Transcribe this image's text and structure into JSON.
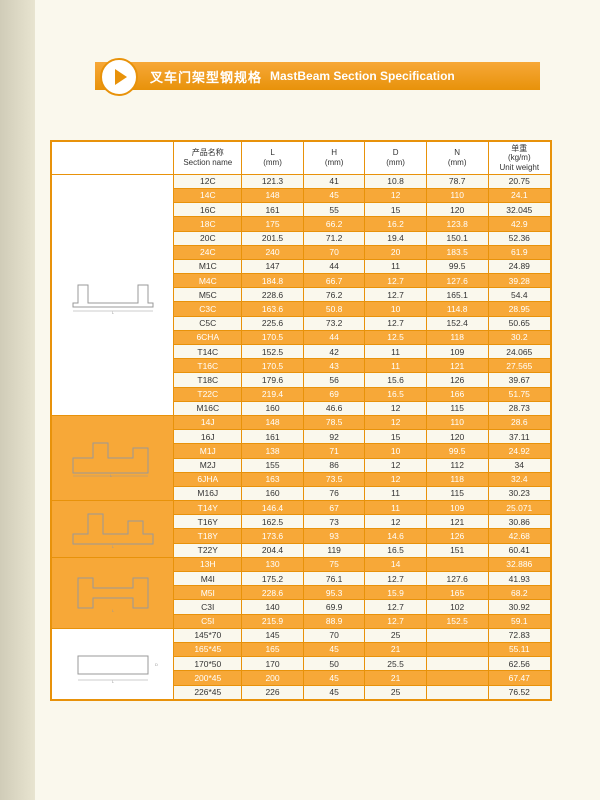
{
  "header": {
    "title_cn": "叉车门架型钢规格",
    "title_en": "MastBeam Section Specification"
  },
  "columns": [
    {
      "cn": "产品名称",
      "en": "Section name"
    },
    {
      "cn": "L",
      "en": "(mm)"
    },
    {
      "cn": "H",
      "en": "(mm)"
    },
    {
      "cn": "D",
      "en": "(mm)"
    },
    {
      "cn": "N",
      "en": "(mm)"
    },
    {
      "cn": "单重",
      "en": "(kg/m)\nUnit weight"
    }
  ],
  "groups": [
    {
      "diagram": "c",
      "rows": [
        {
          "hl": false,
          "cells": [
            "12C",
            "121.3",
            "41",
            "10.8",
            "78.7",
            "20.75"
          ]
        },
        {
          "hl": true,
          "cells": [
            "14C",
            "148",
            "45",
            "12",
            "110",
            "24.1"
          ]
        },
        {
          "hl": false,
          "cells": [
            "16C",
            "161",
            "55",
            "15",
            "120",
            "32.045"
          ]
        },
        {
          "hl": true,
          "cells": [
            "18C",
            "175",
            "66.2",
            "16.2",
            "123.8",
            "42.9"
          ]
        },
        {
          "hl": false,
          "cells": [
            "20C",
            "201.5",
            "71.2",
            "19.4",
            "150.1",
            "52.36"
          ]
        },
        {
          "hl": true,
          "cells": [
            "24C",
            "240",
            "70",
            "20",
            "183.5",
            "61.9"
          ]
        },
        {
          "hl": false,
          "cells": [
            "M1C",
            "147",
            "44",
            "11",
            "99.5",
            "24.89"
          ]
        },
        {
          "hl": true,
          "cells": [
            "M4C",
            "184.8",
            "66.7",
            "12.7",
            "127.6",
            "39.28"
          ]
        },
        {
          "hl": false,
          "cells": [
            "M5C",
            "228.6",
            "76.2",
            "12.7",
            "165.1",
            "54.4"
          ]
        },
        {
          "hl": true,
          "cells": [
            "C3C",
            "163.6",
            "50.8",
            "10",
            "114.8",
            "28.95"
          ]
        },
        {
          "hl": false,
          "cells": [
            "C5C",
            "225.6",
            "73.2",
            "12.7",
            "152.4",
            "50.65"
          ]
        },
        {
          "hl": true,
          "cells": [
            "6CHA",
            "170.5",
            "44",
            "12.5",
            "118",
            "30.2"
          ]
        },
        {
          "hl": false,
          "cells": [
            "T14C",
            "152.5",
            "42",
            "11",
            "109",
            "24.065"
          ]
        },
        {
          "hl": true,
          "cells": [
            "T16C",
            "170.5",
            "43",
            "11",
            "121",
            "27.565"
          ]
        },
        {
          "hl": false,
          "cells": [
            "T18C",
            "179.6",
            "56",
            "15.6",
            "126",
            "39.67"
          ]
        },
        {
          "hl": true,
          "cells": [
            "T22C",
            "219.4",
            "69",
            "16.5",
            "166",
            "51.75"
          ]
        },
        {
          "hl": false,
          "cells": [
            "M16C",
            "160",
            "46.6",
            "12",
            "115",
            "28.73"
          ]
        }
      ]
    },
    {
      "diagram": "j",
      "rows": [
        {
          "hl": true,
          "cells": [
            "14J",
            "148",
            "78.5",
            "12",
            "110",
            "28.6"
          ]
        },
        {
          "hl": false,
          "cells": [
            "16J",
            "161",
            "92",
            "15",
            "120",
            "37.11"
          ]
        },
        {
          "hl": true,
          "cells": [
            "M1J",
            "138",
            "71",
            "10",
            "99.5",
            "24.92"
          ]
        },
        {
          "hl": false,
          "cells": [
            "M2J",
            "155",
            "86",
            "12",
            "112",
            "34"
          ]
        },
        {
          "hl": true,
          "cells": [
            "6JHA",
            "163",
            "73.5",
            "12",
            "118",
            "32.4"
          ]
        },
        {
          "hl": false,
          "cells": [
            "M16J",
            "160",
            "76",
            "11",
            "115",
            "30.23"
          ]
        }
      ]
    },
    {
      "diagram": "y",
      "rows": [
        {
          "hl": true,
          "cells": [
            "T14Y",
            "146.4",
            "67",
            "11",
            "109",
            "25.071"
          ]
        },
        {
          "hl": false,
          "cells": [
            "T16Y",
            "162.5",
            "73",
            "12",
            "121",
            "30.86"
          ]
        },
        {
          "hl": true,
          "cells": [
            "T18Y",
            "173.6",
            "93",
            "14.6",
            "126",
            "42.68"
          ]
        },
        {
          "hl": false,
          "cells": [
            "T22Y",
            "204.4",
            "119",
            "16.5",
            "151",
            "60.41"
          ]
        }
      ]
    },
    {
      "diagram": "h",
      "rows": [
        {
          "hl": true,
          "cells": [
            "13H",
            "130",
            "75",
            "14",
            "",
            "32.886"
          ]
        },
        {
          "hl": false,
          "cells": [
            "M4I",
            "175.2",
            "76.1",
            "12.7",
            "127.6",
            "41.93"
          ]
        },
        {
          "hl": true,
          "cells": [
            "M5I",
            "228.6",
            "95.3",
            "15.9",
            "165",
            "68.2"
          ]
        },
        {
          "hl": false,
          "cells": [
            "C3I",
            "140",
            "69.9",
            "12.7",
            "102",
            "30.92"
          ]
        },
        {
          "hl": true,
          "cells": [
            "C5I",
            "215.9",
            "88.9",
            "12.7",
            "152.5",
            "59.1"
          ]
        }
      ]
    },
    {
      "diagram": "rect",
      "rows": [
        {
          "hl": false,
          "cells": [
            "145*70",
            "145",
            "70",
            "25",
            "",
            "72.83"
          ]
        },
        {
          "hl": true,
          "cells": [
            "165*45",
            "165",
            "45",
            "21",
            "",
            "55.11"
          ]
        },
        {
          "hl": false,
          "cells": [
            "170*50",
            "170",
            "50",
            "25.5",
            "",
            "62.56"
          ]
        },
        {
          "hl": true,
          "cells": [
            "200*45",
            "200",
            "45",
            "21",
            "",
            "67.47"
          ]
        },
        {
          "hl": false,
          "cells": [
            "226*45",
            "226",
            "45",
            "25",
            "",
            "76.52"
          ]
        }
      ]
    }
  ],
  "colors": {
    "accent": "#e8920a",
    "highlight": "#f7a838",
    "bg": "#faf8ed"
  }
}
